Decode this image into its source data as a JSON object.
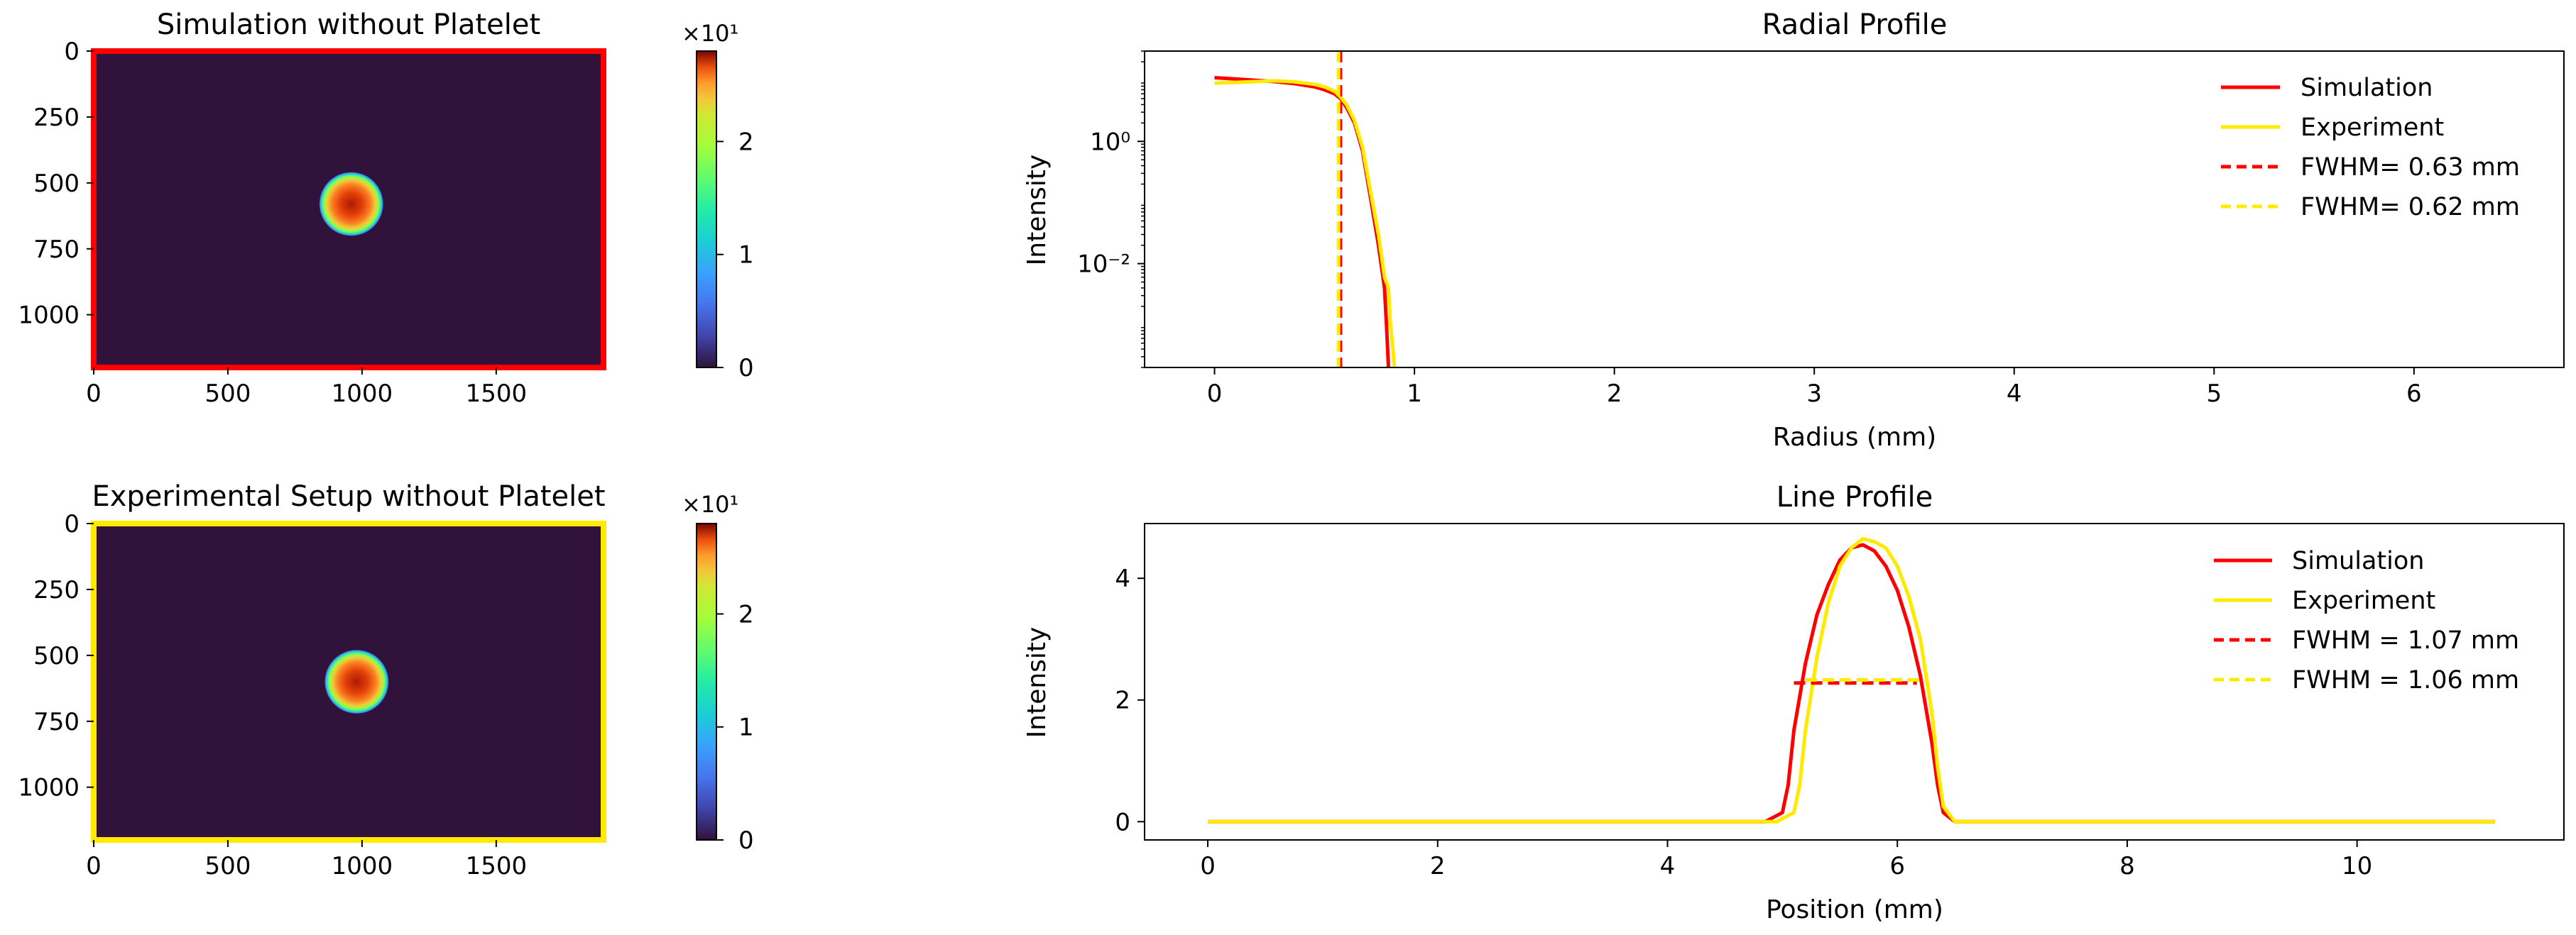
{
  "colors": {
    "simulation": "#ff0000",
    "experiment": "#ffea00",
    "heatmap_background": "#30123b"
  },
  "chart_data": [
    {
      "type": "heatmap",
      "title": "Simulation without Platelet",
      "frame_color": "#ff0000",
      "xlim": [
        0,
        1900
      ],
      "ylim": [
        1200,
        0
      ],
      "xticks": [
        "0",
        "500",
        "1000",
        "1500"
      ],
      "yticks": [
        "0",
        "250",
        "500",
        "750",
        "1000"
      ],
      "spot": {
        "cx": 960,
        "cy": 580,
        "r": 120
      },
      "colorbar": {
        "min": 0,
        "max": 2.8,
        "ticks": [
          "0",
          "1",
          "2"
        ],
        "multiplier": "×10¹",
        "colormap": "turbo"
      }
    },
    {
      "type": "line",
      "title": "Radial Profile",
      "xlabel": "Radius (mm)",
      "ylabel": "Intensity",
      "yscale": "log",
      "xlim": [
        -0.35,
        6.75
      ],
      "ylim": [
        0.0002,
        30
      ],
      "xticks": [
        "0",
        "1",
        "2",
        "3",
        "4",
        "5",
        "6"
      ],
      "yticks": [
        {
          "label": "10⁰",
          "value": 1
        },
        {
          "label": "10⁻²",
          "value": 0.01
        }
      ],
      "legend": "top-right",
      "series": [
        {
          "name": "Simulation",
          "style": "solid",
          "x": [
            0,
            0.1,
            0.2,
            0.3,
            0.4,
            0.5,
            0.55,
            0.6,
            0.63,
            0.66,
            0.7,
            0.74,
            0.78,
            0.82,
            0.85,
            0.86,
            0.87
          ],
          "y": [
            11,
            10.5,
            10,
            9.5,
            8.8,
            7.8,
            7,
            6,
            5,
            3.6,
            2,
            0.7,
            0.12,
            0.02,
            0.004,
            0.001,
            0.0002
          ]
        },
        {
          "name": "Experiment",
          "style": "solid",
          "x": [
            0,
            0.1,
            0.2,
            0.3,
            0.4,
            0.5,
            0.55,
            0.6,
            0.62,
            0.66,
            0.7,
            0.74,
            0.78,
            0.82,
            0.85,
            0.87,
            0.88,
            0.89,
            0.9
          ],
          "y": [
            9,
            9.2,
            9.5,
            9.8,
            9.4,
            8.6,
            7.8,
            6.6,
            5.8,
            4,
            2.2,
            0.8,
            0.15,
            0.03,
            0.006,
            0.004,
            0.001,
            0.0005,
            0.0002
          ]
        },
        {
          "name": "FWHM= 0.63 mm",
          "style": "dashed",
          "color_key": "simulation",
          "vline_x": 0.63
        },
        {
          "name": "FWHM= 0.62 mm",
          "style": "dashed",
          "color_key": "experiment",
          "vline_x": 0.62
        }
      ]
    },
    {
      "type": "heatmap",
      "title": "Experimental Setup without Platelet",
      "frame_color": "#ffea00",
      "xlim": [
        0,
        1900
      ],
      "ylim": [
        1200,
        0
      ],
      "xticks": [
        "0",
        "500",
        "1000",
        "1500"
      ],
      "yticks": [
        "0",
        "250",
        "500",
        "750",
        "1000"
      ],
      "spot": {
        "cx": 980,
        "cy": 600,
        "r": 120
      },
      "colorbar": {
        "min": 0,
        "max": 2.8,
        "ticks": [
          "0",
          "1",
          "2"
        ],
        "multiplier": "×10¹",
        "colormap": "turbo"
      }
    },
    {
      "type": "line",
      "title": "Line Profile",
      "xlabel": "Position (mm)",
      "ylabel": "Intensity",
      "yscale": "linear",
      "xlim": [
        -0.55,
        11.8
      ],
      "ylim": [
        -0.3,
        4.9
      ],
      "xticks": [
        "0",
        "2",
        "4",
        "6",
        "8",
        "10"
      ],
      "yticks": [
        "0",
        "2",
        "4"
      ],
      "legend": "top-right",
      "series": [
        {
          "name": "Simulation",
          "style": "solid",
          "x": [
            0,
            4.85,
            5.0,
            5.05,
            5.1,
            5.2,
            5.3,
            5.4,
            5.5,
            5.6,
            5.7,
            5.8,
            5.9,
            6.0,
            6.1,
            6.2,
            6.3,
            6.35,
            6.4,
            6.5,
            11.2
          ],
          "y": [
            0,
            0,
            0.15,
            0.6,
            1.5,
            2.6,
            3.4,
            3.9,
            4.3,
            4.5,
            4.55,
            4.45,
            4.2,
            3.8,
            3.2,
            2.4,
            1.3,
            0.6,
            0.15,
            0,
            0
          ]
        },
        {
          "name": "Experiment",
          "style": "solid",
          "x": [
            0,
            4.95,
            5.1,
            5.15,
            5.2,
            5.3,
            5.4,
            5.5,
            5.6,
            5.7,
            5.8,
            5.9,
            6.0,
            6.1,
            6.2,
            6.3,
            6.35,
            6.4,
            6.5,
            11.2
          ],
          "y": [
            0,
            0,
            0.15,
            0.6,
            1.5,
            2.7,
            3.6,
            4.2,
            4.5,
            4.65,
            4.6,
            4.5,
            4.2,
            3.7,
            3.0,
            1.8,
            0.9,
            0.25,
            0,
            0
          ]
        },
        {
          "name": "FWHM = 1.07 mm",
          "style": "dashed",
          "color_key": "simulation",
          "hline": {
            "x0": 5.1,
            "x1": 6.17,
            "y": 2.28
          }
        },
        {
          "name": "FWHM = 1.06 mm",
          "style": "dashed",
          "color_key": "experiment",
          "hline": {
            "x0": 5.2,
            "x1": 6.26,
            "y": 2.33
          }
        }
      ]
    }
  ]
}
